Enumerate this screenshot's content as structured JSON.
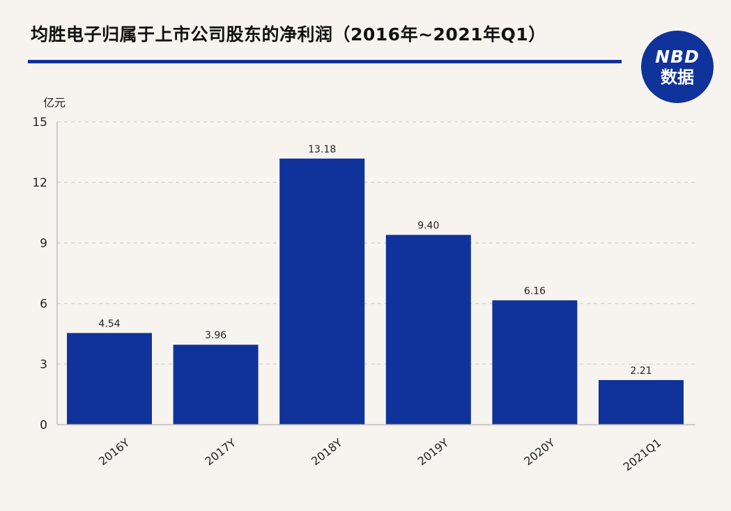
{
  "title": "均胜电子归属于上市公司股东的净利润（2016年~2021年Q1）",
  "logo": {
    "line1": "NBD",
    "line2": "数据"
  },
  "colors": {
    "bar": "#0f339b",
    "rule": "#0f339b",
    "logo_bg": "#0f339b"
  },
  "chart_data": {
    "type": "bar",
    "title": "均胜电子归属于上市公司股东的净利润（2016年~2021年Q1）",
    "ylabel": "亿元",
    "xlabel": "",
    "categories": [
      "2016Y",
      "2017Y",
      "2018Y",
      "2019Y",
      "2020Y",
      "2021Q1"
    ],
    "values": [
      4.54,
      3.96,
      13.18,
      9.4,
      6.16,
      2.21
    ],
    "value_labels": [
      "4.54",
      "3.96",
      "13.18",
      "9.40",
      "6.16",
      "2.21"
    ],
    "ylim": [
      0,
      15
    ],
    "yticks": [
      0,
      3,
      6,
      9,
      12,
      15
    ],
    "grid": true,
    "legend": "none"
  }
}
